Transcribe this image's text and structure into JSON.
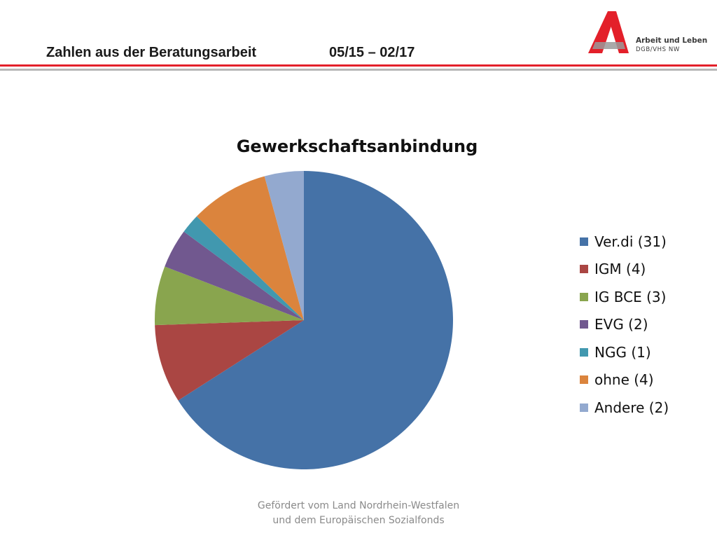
{
  "header": {
    "title": "Zahlen aus der Beratungsarbeit",
    "date_range": "05/15 – 02/17"
  },
  "logo": {
    "icon": "arbeit-und-leben-a-logo",
    "name": "Arbeit und Leben",
    "sub": "DGB/VHS NW",
    "colors": {
      "red": "#e3202a",
      "gray": "#9a9a9a"
    }
  },
  "chart_data": {
    "type": "pie",
    "title": "Gewerkschaftsanbindung",
    "legend_position": "right",
    "categories": [
      "Ver.di (31)",
      "IGM (4)",
      "IG BCE (3)",
      "EVG (2)",
      "NGG (1)",
      "ohne (4)",
      "Andere (2)"
    ],
    "values": [
      31,
      4,
      3,
      2,
      1,
      4,
      2
    ],
    "colors": [
      "#4572a7",
      "#aa4643",
      "#89a54e",
      "#71588f",
      "#4198af",
      "#db843d",
      "#93a9cf"
    ]
  },
  "footer": {
    "line1": "Gefördert vom Land Nordrhein-Westfalen",
    "line2": "und dem Europäischen Sozialfonds"
  }
}
